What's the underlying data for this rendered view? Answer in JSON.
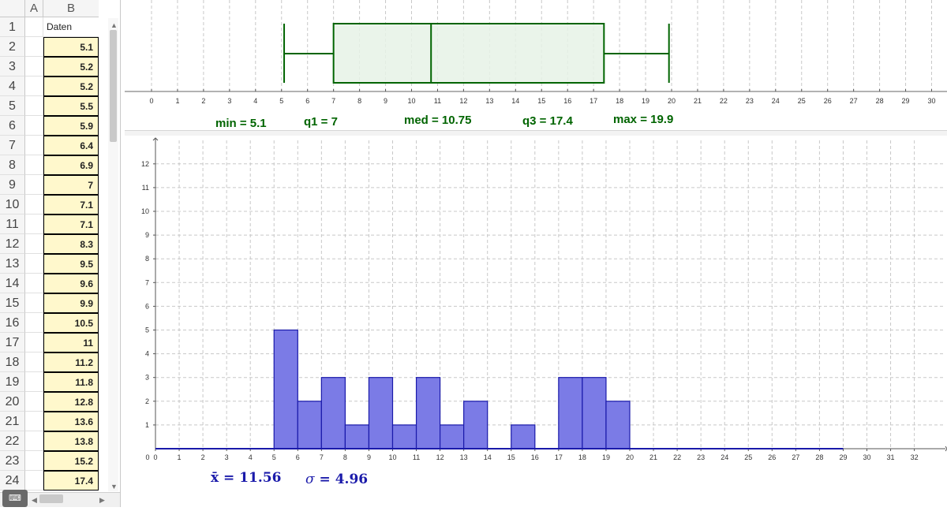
{
  "spreadsheet": {
    "columns": [
      "A",
      "B"
    ],
    "rows": [
      {
        "num": "1",
        "B": "Daten"
      },
      {
        "num": "2",
        "B": "5.1"
      },
      {
        "num": "3",
        "B": "5.2"
      },
      {
        "num": "4",
        "B": "5.2"
      },
      {
        "num": "5",
        "B": "5.5"
      },
      {
        "num": "6",
        "B": "5.9"
      },
      {
        "num": "7",
        "B": "6.4"
      },
      {
        "num": "8",
        "B": "6.9"
      },
      {
        "num": "9",
        "B": "7"
      },
      {
        "num": "10",
        "B": "7.1"
      },
      {
        "num": "11",
        "B": "7.1"
      },
      {
        "num": "12",
        "B": "8.3"
      },
      {
        "num": "13",
        "B": "9.5"
      },
      {
        "num": "14",
        "B": "9.6"
      },
      {
        "num": "15",
        "B": "9.9"
      },
      {
        "num": "16",
        "B": "10.5"
      },
      {
        "num": "17",
        "B": "11"
      },
      {
        "num": "18",
        "B": "11.2"
      },
      {
        "num": "19",
        "B": "11.8"
      },
      {
        "num": "20",
        "B": "12.8"
      },
      {
        "num": "21",
        "B": "13.6"
      },
      {
        "num": "22",
        "B": "13.8"
      },
      {
        "num": "23",
        "B": "15.2"
      },
      {
        "num": "24",
        "B": "17.4"
      }
    ],
    "keyboard_label": "⌨"
  },
  "boxplot": {
    "stats_labels": {
      "min": "min = 5.1",
      "q1": "q1 = 7",
      "med": "med = 10.75",
      "q3": "q3 = 17.4",
      "max": "max = 19.9"
    },
    "color": "#006400",
    "fill": "#e6f2e6"
  },
  "histogram": {
    "mean_label": "x̄ = 11.56",
    "sigma_symbol": "σ",
    "sigma_value": "= 4.96",
    "color": "#1a1aaa",
    "fill": "#7b7be6"
  },
  "chart_data": [
    {
      "type": "boxplot",
      "min": 5.1,
      "q1": 7,
      "median": 10.75,
      "q3": 17.4,
      "max": 19.9,
      "xlim": [
        0,
        30
      ],
      "xticks": [
        "0",
        "1",
        "2",
        "3",
        "4",
        "5",
        "6",
        "7",
        "8",
        "9",
        "10",
        "11",
        "12",
        "13",
        "14",
        "15",
        "16",
        "17",
        "18",
        "19",
        "20",
        "21",
        "22",
        "23",
        "24",
        "25",
        "26",
        "27",
        "28",
        "29",
        "30"
      ],
      "grid": true
    },
    {
      "type": "bar",
      "bins": [
        [
          5,
          6
        ],
        [
          6,
          7
        ],
        [
          7,
          8
        ],
        [
          8,
          9
        ],
        [
          9,
          10
        ],
        [
          10,
          11
        ],
        [
          11,
          12
        ],
        [
          12,
          13
        ],
        [
          13,
          14
        ],
        [
          14,
          15
        ],
        [
          15,
          16
        ],
        [
          16,
          17
        ],
        [
          17,
          18
        ],
        [
          18,
          19
        ],
        [
          19,
          20
        ]
      ],
      "values": [
        5,
        2,
        3,
        1,
        3,
        1,
        3,
        1,
        2,
        0,
        1,
        0,
        3,
        3,
        2
      ],
      "xlim": [
        0,
        32
      ],
      "ylim": [
        0,
        12
      ],
      "xticks": [
        "0",
        "1",
        "2",
        "3",
        "4",
        "5",
        "6",
        "7",
        "8",
        "9",
        "10",
        "11",
        "12",
        "13",
        "14",
        "15",
        "16",
        "17",
        "18",
        "19",
        "20",
        "21",
        "22",
        "23",
        "24",
        "25",
        "26",
        "27",
        "28",
        "29",
        "30",
        "31",
        "32"
      ],
      "yticks": [
        "1",
        "2",
        "3",
        "4",
        "5",
        "6",
        "7",
        "8",
        "9",
        "10",
        "11",
        "12"
      ],
      "grid": true
    }
  ]
}
